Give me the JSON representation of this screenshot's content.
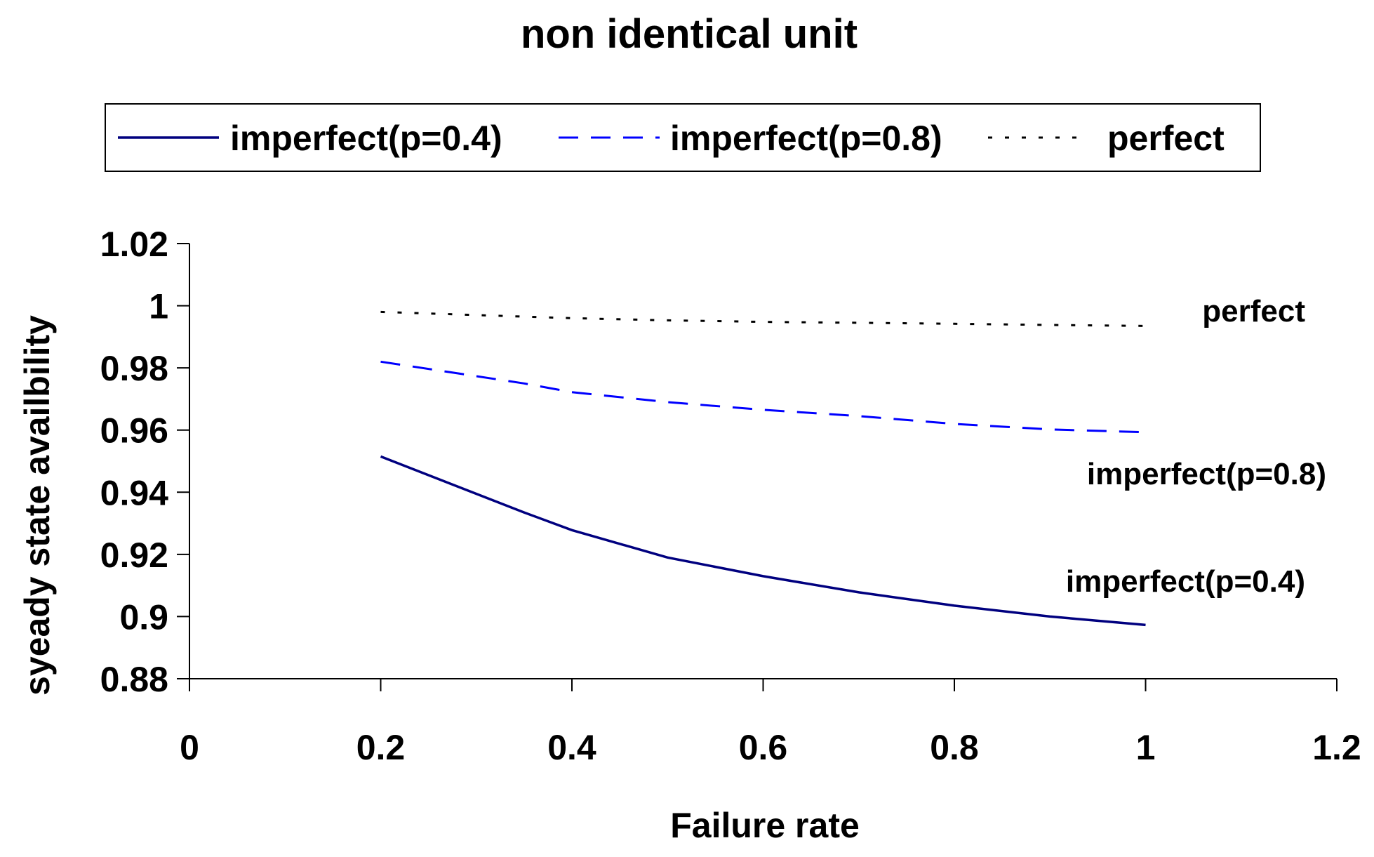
{
  "chart_data": {
    "type": "line",
    "title": "non identical unit",
    "xlabel": "Failure rate",
    "ylabel": "syeady state availbility",
    "xlim": [
      0,
      1.2
    ],
    "ylim": [
      0.88,
      1.02
    ],
    "x_ticks": [
      "0",
      "0.2",
      "0.4",
      "0.6",
      "0.8",
      "1",
      "1.2"
    ],
    "y_ticks": [
      "0.88",
      "0.9",
      "0.92",
      "0.94",
      "0.96",
      "0.98",
      "1",
      "1.02"
    ],
    "grid": false,
    "legend_position": "top",
    "series": [
      {
        "name": "imperfect(p=0.4)",
        "color": "#00007f",
        "style": "solid",
        "label": "imperfect(p=0.4)",
        "points": [
          [
            0.2,
            0.9515
          ],
          [
            0.35,
            0.9335
          ],
          [
            0.4,
            0.9278
          ],
          [
            0.5,
            0.919
          ],
          [
            0.6,
            0.913
          ],
          [
            0.7,
            0.9078
          ],
          [
            0.8,
            0.9035
          ],
          [
            0.9,
            0.9
          ],
          [
            1.0,
            0.8973
          ]
        ]
      },
      {
        "name": "imperfect(p=0.8)",
        "color": "#0000ff",
        "style": "dashed",
        "label": "imperfect(p=0.8)",
        "points": [
          [
            0.2,
            0.982
          ],
          [
            0.35,
            0.975
          ],
          [
            0.4,
            0.9722
          ],
          [
            0.5,
            0.969
          ],
          [
            0.6,
            0.9665
          ],
          [
            0.7,
            0.9645
          ],
          [
            0.8,
            0.962
          ],
          [
            0.9,
            0.9602
          ],
          [
            1.0,
            0.9593
          ]
        ]
      },
      {
        "name": "perfect",
        "color": "#000000",
        "style": "dotted",
        "label": "perfect",
        "points": [
          [
            0.2,
            0.998
          ],
          [
            0.35,
            0.9965
          ],
          [
            0.4,
            0.996
          ],
          [
            0.5,
            0.9953
          ],
          [
            0.6,
            0.9948
          ],
          [
            0.7,
            0.9945
          ],
          [
            0.8,
            0.9942
          ],
          [
            0.9,
            0.9938
          ],
          [
            1.0,
            0.9935
          ]
        ]
      }
    ]
  }
}
